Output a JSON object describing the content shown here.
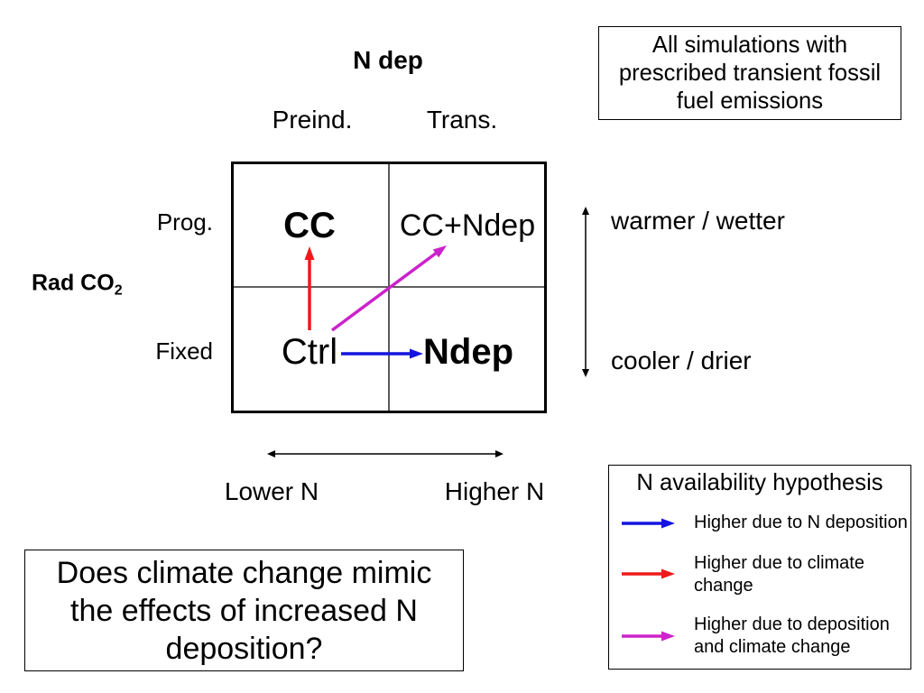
{
  "header": {
    "title": "N dep",
    "col_preind": "Preind.",
    "col_trans": "Trans."
  },
  "note": {
    "text": "All simulations with prescribed transient fossil fuel emissions"
  },
  "rows": {
    "axis_label": "Rad CO",
    "axis_label_sub": "2",
    "prog": "Prog.",
    "fixed": "Fixed"
  },
  "grid": {
    "cc": "CC",
    "cc_ndep": "CC+Ndep",
    "ctrl": "Ctrl",
    "ndep": "Ndep"
  },
  "climate_axis": {
    "top": "warmer / wetter",
    "bottom": "cooler / drier"
  },
  "n_axis": {
    "left": "Lower N",
    "right": "Higher N"
  },
  "question": {
    "text": "Does climate change mimic the effects of increased N deposition?"
  },
  "legend": {
    "title": "N availability hypothesis",
    "items": [
      {
        "label": "Higher due to N deposition",
        "color": "#1414e0",
        "icon": "arrow-right-icon"
      },
      {
        "label": "Higher due to climate change",
        "color": "#ee1a1a",
        "icon": "arrow-right-icon"
      },
      {
        "label": "Higher due to deposition and climate change",
        "color": "#cc22cc",
        "icon": "arrow-right-icon"
      }
    ]
  }
}
